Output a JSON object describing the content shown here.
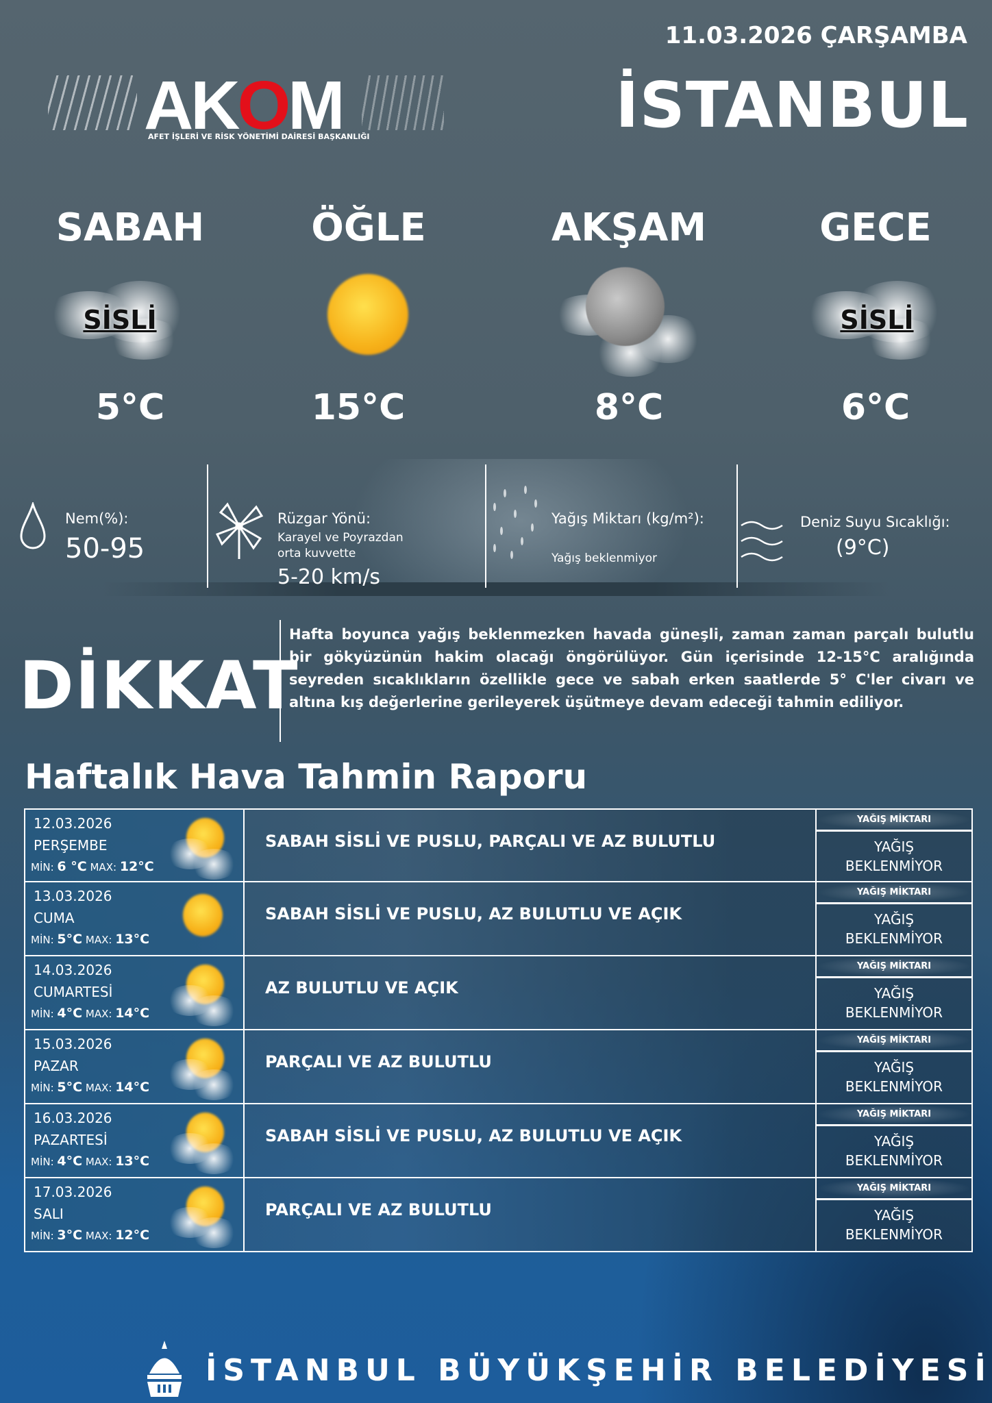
{
  "header": {
    "date": "11.03.2026 ÇARŞAMBA",
    "city": "İSTANBUL",
    "logo_text": "AKOM",
    "logo_subtitle": "AFET İŞLERİ VE RİSK YÖNETİMİ DAİRESİ BAŞKANLIĞI"
  },
  "periods": [
    {
      "name": "SABAH",
      "condition": "SİSLİ",
      "icon": "fog-icon",
      "temp": "5°C"
    },
    {
      "name": "ÖĞLE",
      "condition": "",
      "icon": "sun-icon",
      "temp": "15°C"
    },
    {
      "name": "AKŞAM",
      "condition": "",
      "icon": "moon-cloud-icon",
      "temp": "8°C"
    },
    {
      "name": "GECE",
      "condition": "SİSLİ",
      "icon": "fog-icon",
      "temp": "6°C"
    }
  ],
  "details": {
    "humidity_label": "Nem(%):",
    "humidity_value": "50-95",
    "wind_label": "Rüzgar Yönü:",
    "wind_desc_1": "Karayel ve Poyrazdan",
    "wind_desc_2": "orta kuvvette",
    "wind_speed": "5-20 km/s",
    "rain_label": "Yağış Miktarı (kg/m²):",
    "rain_value": "Yağış beklenmiyor",
    "sea_label": "Deniz Suyu Sıcaklığı:",
    "sea_value": "(9°C)"
  },
  "warning": {
    "title": "DİKKAT",
    "text": "Hafta boyunca yağış beklenmezken havada güneşli, zaman zaman parçalı bulutlu bir gökyüzünün hakim olacağı öngörülüyor. Gün içerisinde 12-15°C aralığında seyreden sıcaklıkların özellikle gece ve sabah erken saatlerde 5° C'ler civarı ve altına kış değerlerine gerileyerek üşütmeye devam edeceği tahmin ediliyor."
  },
  "weekly": {
    "title": "Haftalık Hava Tahmin Raporu",
    "rain_header": "YAĞIŞ MİKTARI",
    "min_label": "MİN:",
    "max_label": "MAX:",
    "rows": [
      {
        "date": "12.03.2026",
        "day": "PERŞEMBE",
        "min": "6 °C",
        "max": "12°C",
        "icon": "sun-cloud-icon",
        "desc": "SABAH SİSLİ VE PUSLU, PARÇALI VE AZ BULUTLU",
        "rain_1": "YAĞIŞ",
        "rain_2": "BEKLENMİYOR"
      },
      {
        "date": "13.03.2026",
        "day": "CUMA",
        "min": "5°C",
        "max": "13°C",
        "icon": "sun-icon",
        "desc": "SABAH SİSLİ VE PUSLU, AZ BULUTLU VE AÇIK",
        "rain_1": "YAĞIŞ",
        "rain_2": "BEKLENMİYOR"
      },
      {
        "date": "14.03.2026",
        "day": "CUMARTESİ",
        "min": "4°C",
        "max": "14°C",
        "icon": "sun-cloud-icon",
        "desc": "AZ BULUTLU VE AÇIK",
        "rain_1": "YAĞIŞ",
        "rain_2": "BEKLENMİYOR"
      },
      {
        "date": "15.03.2026",
        "day": "PAZAR",
        "min": "5°C",
        "max": "14°C",
        "icon": "sun-cloud-icon",
        "desc": "PARÇALI VE AZ BULUTLU",
        "rain_1": "YAĞIŞ",
        "rain_2": "BEKLENMİYOR"
      },
      {
        "date": "16.03.2026",
        "day": "PAZARTESİ",
        "min": "4°C",
        "max": "13°C",
        "icon": "sun-cloud-icon",
        "desc": "SABAH SİSLİ VE PUSLU, AZ BULUTLU VE AÇIK",
        "rain_1": "YAĞIŞ",
        "rain_2": "BEKLENMİYOR"
      },
      {
        "date": "17.03.2026",
        "day": "SALI",
        "min": "3°C",
        "max": "12°C",
        "icon": "sun-cloud-icon",
        "desc": "PARÇALI VE AZ BULUTLU",
        "rain_1": "YAĞIŞ",
        "rain_2": "BEKLENMİYOR"
      }
    ]
  },
  "footer": {
    "text": "İSTANBUL BÜYÜKŞEHİR BELEDİYESİ"
  }
}
